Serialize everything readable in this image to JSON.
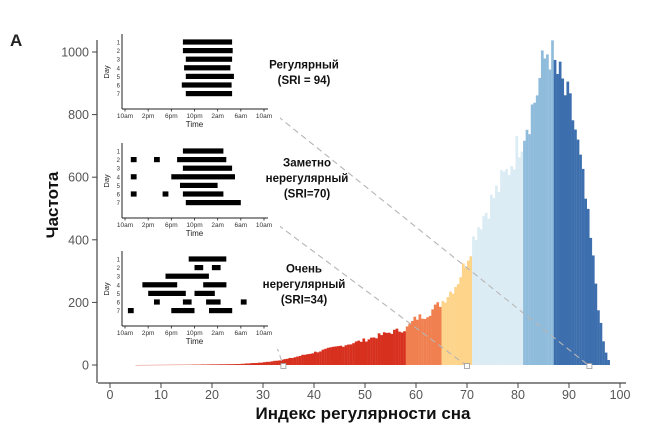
{
  "chart_data": {
    "type": "bar",
    "panel_label": "A",
    "xlabel": "Индекс регулярности сна",
    "ylabel": "Частота",
    "xlim": [
      0,
      100
    ],
    "ylim": [
      0,
      1000
    ],
    "xticks": [
      0,
      10,
      20,
      30,
      40,
      50,
      60,
      70,
      80,
      90,
      100
    ],
    "yticks": [
      0,
      200,
      400,
      600,
      800,
      1000
    ],
    "histogram": {
      "bin_width": 0.5,
      "x_start": 5,
      "x_end": 98,
      "density_points": [
        [
          5,
          0
        ],
        [
          15,
          1
        ],
        [
          25,
          3
        ],
        [
          30,
          8
        ],
        [
          35,
          20
        ],
        [
          40,
          40
        ],
        [
          45,
          60
        ],
        [
          50,
          80
        ],
        [
          55,
          105
        ],
        [
          58,
          115
        ],
        [
          60,
          150
        ],
        [
          62,
          160
        ],
        [
          65,
          200
        ],
        [
          68,
          260
        ],
        [
          70,
          340
        ],
        [
          72,
          440
        ],
        [
          75,
          530
        ],
        [
          78,
          620
        ],
        [
          80,
          700
        ],
        [
          83,
          830
        ],
        [
          85,
          960
        ],
        [
          86,
          1020
        ],
        [
          87,
          960
        ],
        [
          89,
          880
        ],
        [
          91,
          780
        ],
        [
          93,
          560
        ],
        [
          95,
          300
        ],
        [
          96,
          150
        ],
        [
          97,
          50
        ],
        [
          98,
          5
        ]
      ],
      "color_bands": [
        {
          "from": 0,
          "to": 58,
          "color": "#d7301f"
        },
        {
          "from": 58,
          "to": 65,
          "color": "#f08050"
        },
        {
          "from": 65,
          "to": 71,
          "color": "#fdd48a"
        },
        {
          "from": 71,
          "to": 81,
          "color": "#dcecf4"
        },
        {
          "from": 81,
          "to": 87,
          "color": "#90bcdc"
        },
        {
          "from": 87,
          "to": 100,
          "color": "#3d6fae"
        }
      ]
    },
    "markers": [
      {
        "x": 34
      },
      {
        "x": 70
      },
      {
        "x": 94
      }
    ],
    "insets": [
      {
        "label_lines": [
          "Регулярный",
          "(SRI = 94)"
        ],
        "marker_x": 94,
        "sleep_bouts": [
          [
            [
              10.0,
              18.5
            ]
          ],
          [
            [
              10.0,
              18.6
            ]
          ],
          [
            [
              10.5,
              18.5
            ]
          ],
          [
            [
              10.2,
              18.2
            ]
          ],
          [
            [
              10.5,
              18.8
            ]
          ],
          [
            [
              9.8,
              18.4
            ]
          ],
          [
            [
              10.5,
              18.5
            ]
          ]
        ]
      },
      {
        "label_lines": [
          "Заметно",
          "нерегулярный",
          "(SRI=70)"
        ],
        "marker_x": 70,
        "sleep_bouts": [
          [
            [
              10.0,
              17.0
            ]
          ],
          [
            [
              1.0,
              2.0
            ],
            [
              5.0,
              6.0
            ],
            [
              9.0,
              17.5
            ]
          ],
          [
            [
              10.0,
              18.5
            ]
          ],
          [
            [
              1.0,
              2.0
            ],
            [
              8.0,
              19.0
            ]
          ],
          [
            [
              9.5,
              16.0
            ]
          ],
          [
            [
              1.0,
              2.0
            ],
            [
              6.5,
              7.5
            ],
            [
              10.0,
              17.0
            ]
          ],
          [
            [
              10.5,
              20.0
            ]
          ]
        ]
      },
      {
        "label_lines": [
          "Очень",
          "нерегулярный",
          "(SRI=34)"
        ],
        "marker_x": 34,
        "sleep_bouts": [
          [
            [
              11.0,
              17.5
            ]
          ],
          [
            [
              12.0,
              13.5
            ],
            [
              15.0,
              16.5
            ]
          ],
          [
            [
              7.0,
              14.5
            ]
          ],
          [
            [
              3.0,
              9.0
            ],
            [
              13.5,
              17.5
            ]
          ],
          [
            [
              4.0,
              10.5
            ],
            [
              12.0,
              15.5
            ]
          ],
          [
            [
              5.0,
              6.0
            ],
            [
              10.0,
              11.5
            ],
            [
              14.0,
              16.5
            ],
            [
              20.0,
              21.0
            ]
          ],
          [
            [
              0.5,
              1.5
            ],
            [
              8.0,
              12.0
            ],
            [
              14.5,
              18.5
            ]
          ]
        ]
      }
    ],
    "inset_axes": {
      "xlabel": "Time",
      "ylabel": "Day",
      "xticks": [
        "10am",
        "2pm",
        "6pm",
        "10pm",
        "2am",
        "6am",
        "10am"
      ],
      "yticks": [
        "1",
        "2",
        "3",
        "4",
        "5",
        "6",
        "7"
      ]
    }
  }
}
